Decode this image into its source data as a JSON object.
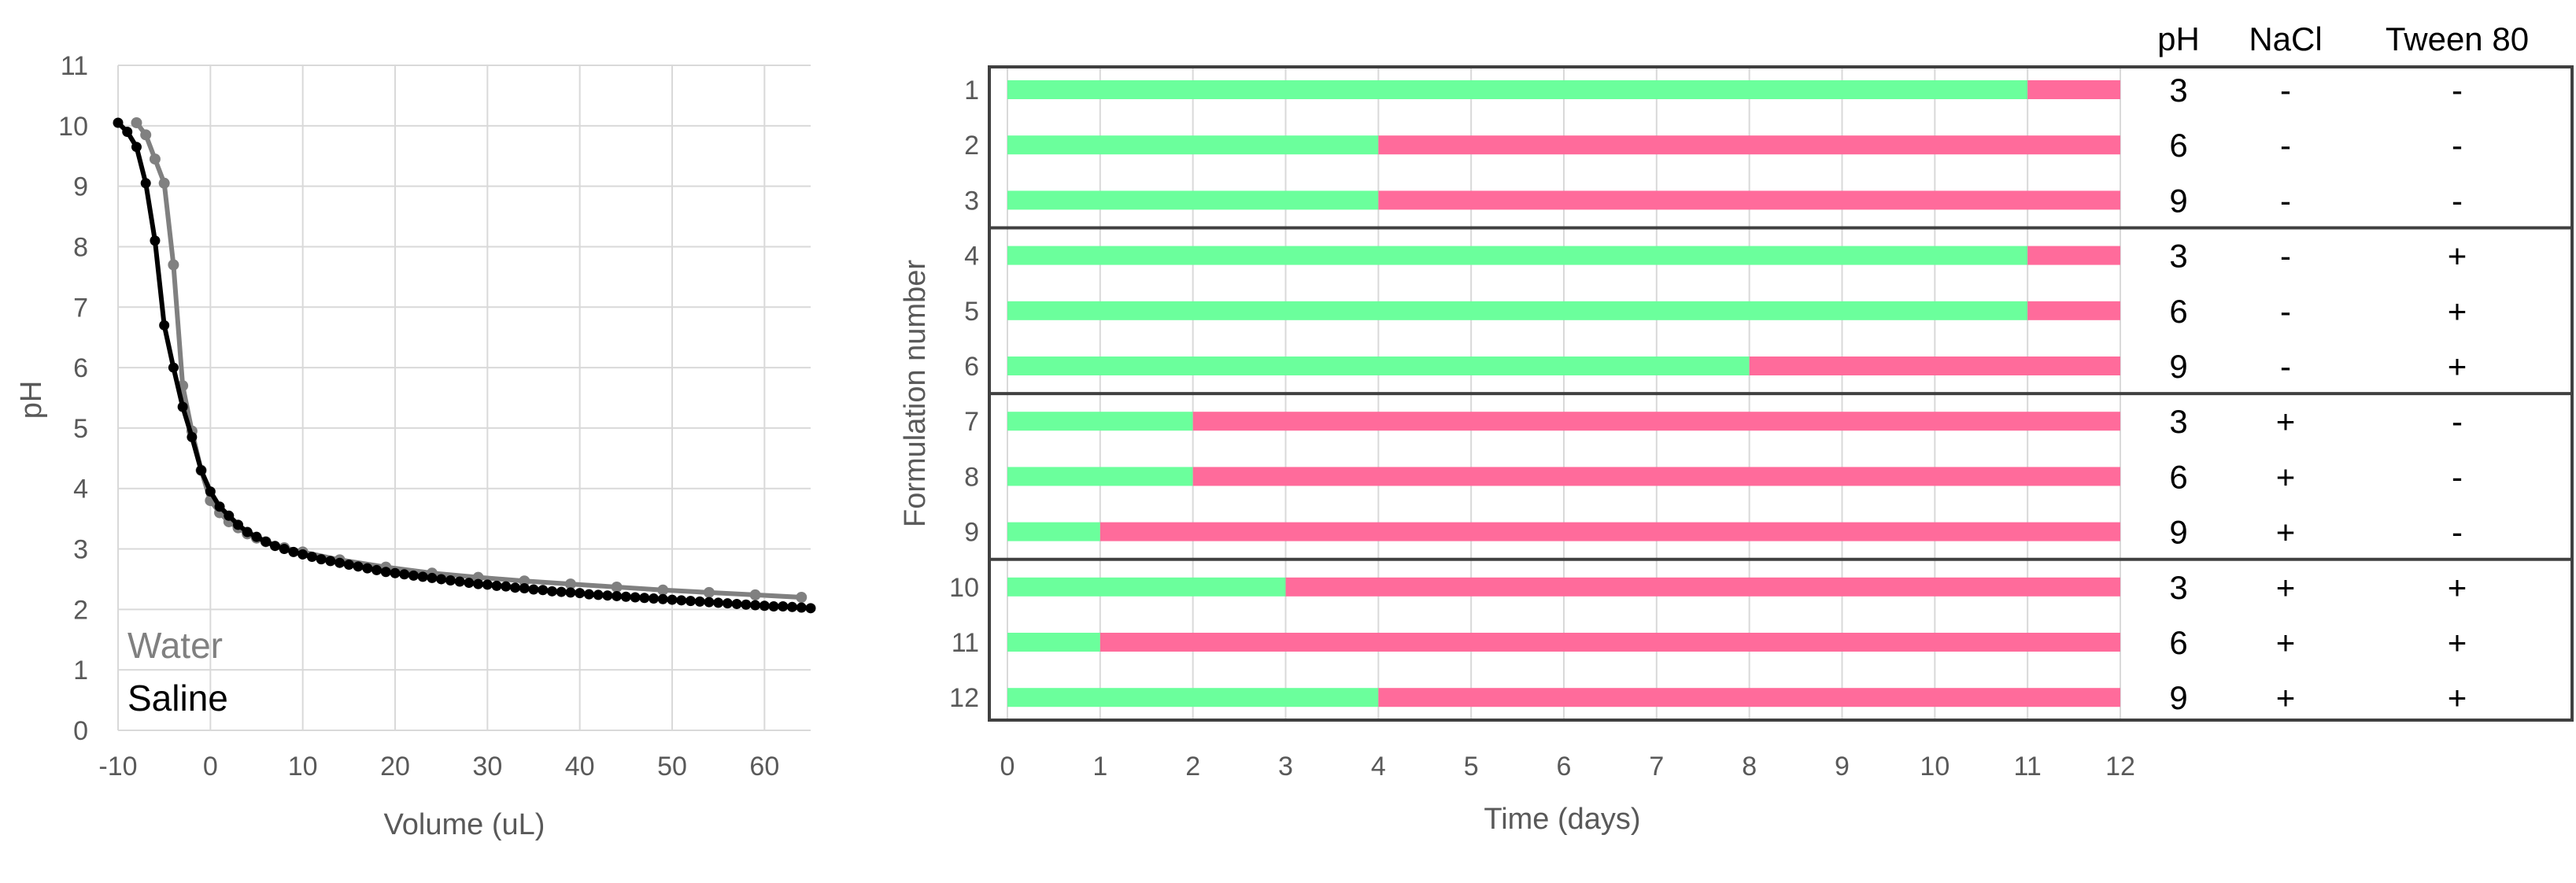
{
  "chart_data": [
    {
      "type": "line",
      "xlabel": "Volume (uL)",
      "ylabel": "pH",
      "xlim": [
        -10,
        65
      ],
      "ylim": [
        0,
        11
      ],
      "xticks": [
        "-10",
        "0",
        "10",
        "20",
        "30",
        "40",
        "50",
        "60"
      ],
      "yticks": [
        "0",
        "1",
        "2",
        "3",
        "4",
        "5",
        "6",
        "7",
        "8",
        "9",
        "10",
        "11"
      ],
      "grid": true,
      "legend_position": "bottom-left",
      "series": [
        {
          "name": "Water",
          "color": "#808080",
          "x": [
            -8,
            -7,
            -6,
            -5,
            -4,
            -3,
            -2,
            -1,
            0,
            1,
            2,
            3,
            4,
            5,
            6,
            8,
            10,
            14,
            19,
            24,
            29,
            34,
            39,
            44,
            49,
            54,
            59,
            64
          ],
          "y": [
            10.05,
            9.85,
            9.45,
            9.05,
            7.7,
            5.7,
            4.95,
            4.3,
            3.8,
            3.6,
            3.45,
            3.35,
            3.25,
            3.18,
            3.12,
            3.02,
            2.95,
            2.82,
            2.7,
            2.6,
            2.53,
            2.47,
            2.42,
            2.37,
            2.32,
            2.28,
            2.24,
            2.2
          ]
        },
        {
          "name": "Saline",
          "color": "#000000",
          "x": [
            -10,
            -9,
            -8,
            -7,
            -6,
            -5,
            -4,
            -3,
            -2,
            -1,
            0,
            1,
            2,
            3,
            4,
            5,
            6,
            7,
            8,
            9,
            10,
            11,
            12,
            13,
            14,
            15,
            16,
            17,
            18,
            19,
            20,
            21,
            22,
            23,
            24,
            25,
            26,
            27,
            28,
            29,
            30,
            31,
            32,
            33,
            34,
            35,
            36,
            37,
            38,
            39,
            40,
            41,
            42,
            43,
            44,
            45,
            46,
            47,
            48,
            49,
            50,
            51,
            52,
            53,
            54,
            55,
            56,
            57,
            58,
            59,
            60,
            61,
            62,
            63,
            64,
            65
          ],
          "y": [
            10.05,
            9.9,
            9.65,
            9.05,
            8.1,
            6.7,
            6.0,
            5.35,
            4.85,
            4.3,
            3.95,
            3.7,
            3.55,
            3.4,
            3.28,
            3.2,
            3.12,
            3.05,
            3.0,
            2.95,
            2.91,
            2.87,
            2.83,
            2.8,
            2.77,
            2.74,
            2.71,
            2.68,
            2.65,
            2.62,
            2.6,
            2.58,
            2.56,
            2.54,
            2.52,
            2.5,
            2.48,
            2.46,
            2.44,
            2.42,
            2.41,
            2.39,
            2.38,
            2.36,
            2.35,
            2.33,
            2.32,
            2.3,
            2.29,
            2.28,
            2.27,
            2.25,
            2.24,
            2.23,
            2.22,
            2.21,
            2.2,
            2.19,
            2.18,
            2.17,
            2.16,
            2.15,
            2.14,
            2.13,
            2.12,
            2.11,
            2.1,
            2.09,
            2.08,
            2.07,
            2.06,
            2.05,
            2.05,
            2.04,
            2.03,
            2.02
          ]
        }
      ]
    },
    {
      "type": "bar",
      "orientation": "horizontal",
      "stacked": true,
      "xlabel": "Time (days)",
      "ylabel": "Formulation number",
      "xlim": [
        0,
        12
      ],
      "xticks": [
        "0",
        "1",
        "2",
        "3",
        "4",
        "5",
        "6",
        "7",
        "8",
        "9",
        "10",
        "11",
        "12"
      ],
      "grid": true,
      "categories": [
        "1",
        "2",
        "3",
        "4",
        "5",
        "6",
        "7",
        "8",
        "9",
        "10",
        "11",
        "12"
      ],
      "colors": {
        "stable": "#6bff9c",
        "unstable": "#ff6b9b"
      },
      "series": [
        {
          "color": "#6bff9c",
          "values": [
            11,
            4,
            4,
            11,
            11,
            8,
            2,
            2,
            1,
            3,
            1,
            4
          ]
        },
        {
          "color": "#ff6b9b",
          "values": [
            1,
            8,
            8,
            1,
            1,
            4,
            10,
            10,
            11,
            9,
            11,
            8
          ]
        }
      ],
      "table": {
        "columns": [
          "pH",
          "NaCl",
          "Tween 80"
        ],
        "rows": [
          [
            "3",
            "-",
            "-"
          ],
          [
            "6",
            "-",
            "-"
          ],
          [
            "9",
            "-",
            "-"
          ],
          [
            "3",
            "-",
            "+"
          ],
          [
            "6",
            "-",
            "+"
          ],
          [
            "9",
            "-",
            "+"
          ],
          [
            "3",
            "+",
            "-"
          ],
          [
            "6",
            "+",
            "-"
          ],
          [
            "9",
            "+",
            "-"
          ],
          [
            "3",
            "+",
            "+"
          ],
          [
            "6",
            "+",
            "+"
          ],
          [
            "9",
            "+",
            "+"
          ]
        ]
      }
    }
  ]
}
